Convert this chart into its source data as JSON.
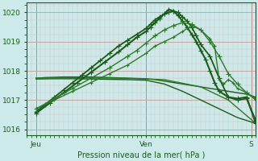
{
  "bg_color": "#cceaea",
  "grid_major_color": "#cc9999",
  "grid_minor_color": "#ddbbbb",
  "line_color_dark": "#1a5c1a",
  "line_color_mid": "#2d7a2d",
  "xlabel": "Pression niveau de la mer( hPa )",
  "xlim": [
    0,
    50
  ],
  "ylim": [
    1015.8,
    1020.35
  ],
  "yticks": [
    1016,
    1017,
    1018,
    1019,
    1020
  ],
  "xtick_positions": [
    2,
    26,
    49
  ],
  "xtick_labels": [
    "Jeu",
    "Ven",
    "S"
  ],
  "series": [
    {
      "x": [
        2,
        4,
        6,
        8,
        10,
        12,
        14,
        16,
        18,
        20,
        22,
        24,
        26,
        28,
        30,
        32,
        34,
        36,
        38,
        40,
        42,
        44,
        46,
        48,
        50
      ],
      "y": [
        1017.75,
        1017.77,
        1017.78,
        1017.79,
        1017.79,
        1017.79,
        1017.79,
        1017.78,
        1017.77,
        1017.76,
        1017.75,
        1017.74,
        1017.73,
        1017.7,
        1017.65,
        1017.6,
        1017.55,
        1017.5,
        1017.45,
        1017.4,
        1017.35,
        1017.3,
        1017.25,
        1017.2,
        1017.1
      ],
      "marker": null,
      "lw": 1.0,
      "color": "#1a5c1a"
    },
    {
      "x": [
        2,
        6,
        10,
        14,
        18,
        22,
        26,
        30,
        34,
        38,
        42,
        46,
        50
      ],
      "y": [
        1017.72,
        1017.73,
        1017.73,
        1017.72,
        1017.71,
        1017.7,
        1017.68,
        1017.55,
        1017.3,
        1017.0,
        1016.7,
        1016.4,
        1016.2
      ],
      "marker": null,
      "lw": 1.0,
      "color": "#1a5c1a"
    },
    {
      "x": [
        2,
        10,
        20,
        30,
        38,
        44,
        50
      ],
      "y": [
        1017.75,
        1017.76,
        1017.75,
        1017.7,
        1017.45,
        1017.0,
        1016.2
      ],
      "marker": null,
      "lw": 1.0,
      "color": "#2d7a2d"
    },
    {
      "x": [
        2,
        4,
        6,
        8,
        10,
        12,
        14,
        16,
        18,
        20,
        22,
        24,
        26,
        27,
        28,
        29,
        30,
        31,
        32,
        33,
        34,
        35,
        36,
        37,
        38,
        40,
        42,
        44,
        46,
        48,
        50
      ],
      "y": [
        1016.6,
        1016.85,
        1017.1,
        1017.35,
        1017.6,
        1017.85,
        1018.1,
        1018.35,
        1018.6,
        1018.85,
        1019.05,
        1019.25,
        1019.45,
        1019.6,
        1019.75,
        1019.85,
        1019.95,
        1020.0,
        1020.05,
        1020.0,
        1019.85,
        1019.7,
        1019.5,
        1019.2,
        1018.9,
        1018.5,
        1017.75,
        1017.1,
        1017.0,
        1017.05,
        1016.3
      ],
      "marker": "+",
      "ms": 4,
      "lw": 1.3,
      "color": "#1a5c1a"
    },
    {
      "x": [
        2,
        5,
        8,
        11,
        14,
        17,
        20,
        22,
        24,
        26,
        27,
        28,
        29,
        30,
        31,
        32,
        33,
        34,
        35,
        36,
        37,
        38,
        39,
        40,
        41,
        42,
        44,
        46,
        48,
        50
      ],
      "y": [
        1016.55,
        1016.9,
        1017.25,
        1017.6,
        1017.95,
        1018.3,
        1018.65,
        1018.9,
        1019.15,
        1019.35,
        1019.5,
        1019.65,
        1019.8,
        1019.95,
        1020.1,
        1020.05,
        1019.9,
        1019.7,
        1019.5,
        1019.25,
        1019.0,
        1018.7,
        1018.4,
        1018.0,
        1017.6,
        1017.3,
        1017.1,
        1017.05,
        1017.1,
        1016.2
      ],
      "marker": "+",
      "ms": 4,
      "lw": 1.5,
      "color": "#1a5c1a"
    },
    {
      "x": [
        2,
        6,
        10,
        14,
        18,
        22,
        24,
        26,
        28,
        30,
        32,
        34,
        36,
        38,
        40,
        42,
        44,
        46,
        48,
        50
      ],
      "y": [
        1016.7,
        1017.05,
        1017.4,
        1017.75,
        1018.1,
        1018.5,
        1018.7,
        1018.95,
        1019.2,
        1019.4,
        1019.55,
        1019.65,
        1019.6,
        1019.4,
        1019.0,
        1018.5,
        1017.9,
        1017.55,
        1017.25,
        1017.05
      ],
      "marker": "+",
      "ms": 4,
      "lw": 1.0,
      "color": "#2d7a2d"
    },
    {
      "x": [
        2,
        6,
        10,
        14,
        18,
        22,
        26,
        28,
        30,
        32,
        34,
        36,
        38,
        40,
        41,
        42,
        43,
        44,
        45,
        46,
        48,
        50
      ],
      "y": [
        1016.7,
        1017.0,
        1017.3,
        1017.6,
        1017.9,
        1018.2,
        1018.6,
        1018.85,
        1019.0,
        1019.15,
        1019.35,
        1019.55,
        1019.4,
        1019.1,
        1018.85,
        1017.7,
        1017.55,
        1017.7,
        1017.6,
        1017.4,
        1017.25,
        1017.0
      ],
      "marker": "+",
      "ms": 3,
      "lw": 1.0,
      "color": "#2d7a2d"
    }
  ]
}
